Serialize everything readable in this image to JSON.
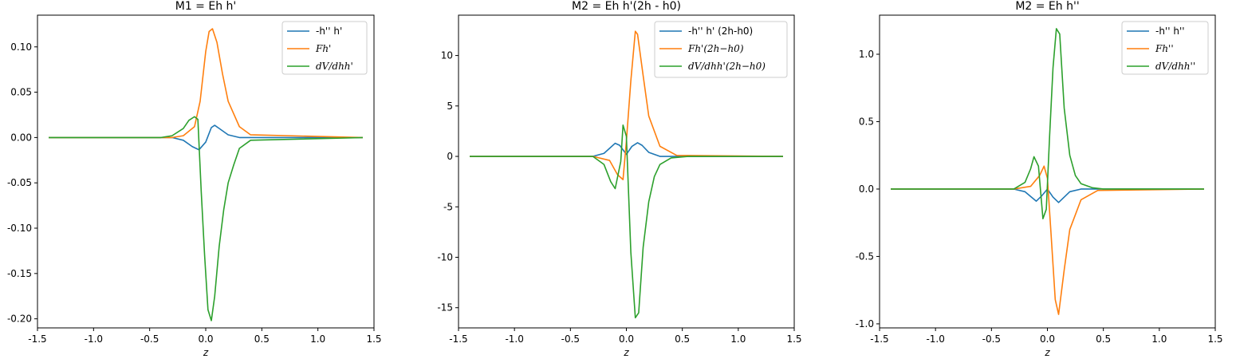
{
  "chart_data": [
    {
      "type": "line",
      "title": "M1 = Eh h'",
      "xlabel": "z",
      "ylabel": "",
      "xlim": [
        -1.5,
        1.5
      ],
      "ylim": [
        -0.21,
        0.135
      ],
      "xticks": [
        "-1.5",
        "-1.0",
        "-0.5",
        "0.0",
        "0.5",
        "1.0",
        "1.5"
      ],
      "yticks": [
        "-0.20",
        "-0.15",
        "-0.10",
        "-0.05",
        "0.00",
        "0.05",
        "0.10"
      ],
      "legend_loc": "upper right",
      "series": [
        {
          "name": "-h'' h'",
          "color": "#1f77b4",
          "x": [
            -1.4,
            -0.3,
            -0.2,
            -0.12,
            -0.06,
            0.0,
            0.05,
            0.08,
            0.12,
            0.2,
            0.3,
            1.4
          ],
          "y": [
            0,
            0,
            -0.003,
            -0.01,
            -0.0135,
            -0.005,
            0.011,
            0.0135,
            0.01,
            0.003,
            0,
            0
          ]
        },
        {
          "name": "Fh'",
          "color": "#ff7f0e",
          "x": [
            -1.4,
            -0.3,
            -0.2,
            -0.1,
            -0.05,
            0.0,
            0.03,
            0.06,
            0.1,
            0.15,
            0.2,
            0.3,
            0.4,
            1.4
          ],
          "y": [
            0,
            0,
            0.002,
            0.012,
            0.04,
            0.095,
            0.117,
            0.12,
            0.105,
            0.07,
            0.04,
            0.012,
            0.003,
            0
          ]
        },
        {
          "name": "dV/dhh'",
          "color": "#2ca02c",
          "x": [
            -1.4,
            -0.4,
            -0.3,
            -0.2,
            -0.15,
            -0.1,
            -0.07,
            -0.04,
            -0.01,
            0.02,
            0.05,
            0.08,
            0.12,
            0.16,
            0.2,
            0.25,
            0.3,
            0.4,
            1.4
          ],
          "y": [
            0,
            0,
            0.002,
            0.01,
            0.019,
            0.023,
            0.02,
            -0.06,
            -0.13,
            -0.19,
            -0.202,
            -0.175,
            -0.12,
            -0.08,
            -0.05,
            -0.03,
            -0.012,
            -0.003,
            0
          ]
        }
      ]
    },
    {
      "type": "line",
      "title": "M2 = Eh h'(2h - h0)",
      "xlabel": "z",
      "ylabel": "",
      "xlim": [
        -1.5,
        1.5
      ],
      "ylim": [
        -17,
        14
      ],
      "xticks": [
        "-1.5",
        "-1.0",
        "-0.5",
        "0.0",
        "0.5",
        "1.0",
        "1.5"
      ],
      "yticks": [
        "-15",
        "-10",
        "-5",
        "0",
        "5",
        "10"
      ],
      "legend_loc": "upper right",
      "series": [
        {
          "name": "-h'' h' (2h-h0)",
          "color": "#1f77b4",
          "x": [
            -1.4,
            -0.3,
            -0.2,
            -0.1,
            -0.06,
            0.0,
            0.05,
            0.1,
            0.14,
            0.2,
            0.3,
            1.4
          ],
          "y": [
            0,
            0,
            0.3,
            1.3,
            1.1,
            0.2,
            1.0,
            1.35,
            1.1,
            0.4,
            0,
            0
          ]
        },
        {
          "name": "Fh'(2h−h0)",
          "color": "#ff7f0e",
          "x": [
            -1.4,
            -0.3,
            -0.15,
            -0.08,
            -0.03,
            0.0,
            0.04,
            0.08,
            0.1,
            0.15,
            0.2,
            0.3,
            0.45,
            1.4
          ],
          "y": [
            0,
            0,
            -0.4,
            -1.8,
            -2.3,
            1.5,
            7.5,
            12.4,
            12.1,
            8.0,
            4.0,
            1.0,
            0.1,
            0
          ]
        },
        {
          "name": "dV/dhh'(2h−h0)",
          "color": "#2ca02c",
          "x": [
            -1.4,
            -0.3,
            -0.2,
            -0.14,
            -0.1,
            -0.05,
            -0.03,
            0.0,
            0.04,
            0.08,
            0.11,
            0.15,
            0.2,
            0.25,
            0.3,
            0.4,
            0.55,
            1.4
          ],
          "y": [
            0,
            0,
            -0.8,
            -2.5,
            -3.2,
            -0.5,
            3.1,
            2.0,
            -9.5,
            -16.0,
            -15.5,
            -9.0,
            -4.5,
            -2.0,
            -0.8,
            -0.15,
            0,
            0
          ]
        }
      ]
    },
    {
      "type": "line",
      "title": "M2 = Eh h''",
      "xlabel": "z",
      "ylabel": "",
      "xlim": [
        -1.5,
        1.5
      ],
      "ylim": [
        -1.03,
        1.29
      ],
      "xticks": [
        "-1.5",
        "-1.0",
        "-0.5",
        "0.0",
        "0.5",
        "1.0",
        "1.5"
      ],
      "yticks": [
        "-1.0",
        "-0.5",
        "0.0",
        "0.5",
        "1.0"
      ],
      "legend_loc": "upper right",
      "series": [
        {
          "name": "-h'' h''",
          "color": "#1f77b4",
          "x": [
            -1.4,
            -0.3,
            -0.2,
            -0.1,
            -0.05,
            0.0,
            0.05,
            0.1,
            0.15,
            0.2,
            0.3,
            1.4
          ],
          "y": [
            0,
            0,
            -0.02,
            -0.09,
            -0.05,
            0.0,
            -0.06,
            -0.1,
            -0.06,
            -0.02,
            0,
            0
          ]
        },
        {
          "name": "Fh''",
          "color": "#ff7f0e",
          "x": [
            -1.4,
            -0.3,
            -0.15,
            -0.07,
            -0.03,
            0.0,
            0.03,
            0.07,
            0.1,
            0.15,
            0.2,
            0.3,
            0.45,
            1.4
          ],
          "y": [
            0,
            0,
            0.02,
            0.1,
            0.17,
            0.08,
            -0.3,
            -0.82,
            -0.93,
            -0.6,
            -0.3,
            -0.08,
            -0.01,
            0
          ]
        },
        {
          "name": "dV/dhh''",
          "color": "#2ca02c",
          "x": [
            -1.4,
            -0.3,
            -0.2,
            -0.15,
            -0.12,
            -0.08,
            -0.04,
            -0.01,
            0.02,
            0.05,
            0.08,
            0.11,
            0.15,
            0.2,
            0.25,
            0.3,
            0.4,
            0.5,
            1.4
          ],
          "y": [
            0,
            0,
            0.05,
            0.15,
            0.24,
            0.17,
            -0.22,
            -0.15,
            0.4,
            0.9,
            1.19,
            1.15,
            0.6,
            0.25,
            0.1,
            0.04,
            0.01,
            0,
            0
          ]
        }
      ]
    }
  ]
}
